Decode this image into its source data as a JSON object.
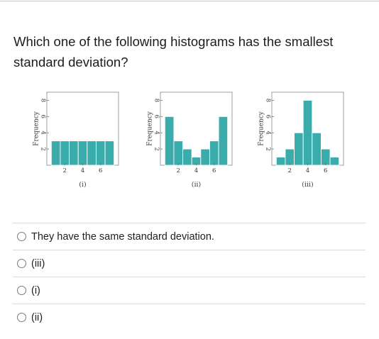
{
  "question": {
    "text": "Which one of the following histograms has the smallest standard deviation?"
  },
  "chart_data": [
    {
      "type": "bar",
      "caption": "(i)",
      "ylabel": "Frequency",
      "xticks": [
        "2",
        "4",
        "6"
      ],
      "yticks": [
        "2",
        "4",
        "6",
        "8"
      ],
      "categories": [
        "1",
        "2",
        "3",
        "4",
        "5",
        "6",
        "7"
      ],
      "values": [
        3,
        3,
        3,
        3,
        3,
        3,
        3
      ],
      "xlim": [
        0,
        8
      ],
      "ylim": [
        0,
        9
      ],
      "bar_color": "#3aacac",
      "grid": false
    },
    {
      "type": "bar",
      "caption": "(ii)",
      "ylabel": "Frequency",
      "xticks": [
        "2",
        "4",
        "6"
      ],
      "yticks": [
        "2",
        "4",
        "6",
        "8"
      ],
      "categories": [
        "1",
        "2",
        "3",
        "4",
        "5",
        "6",
        "7"
      ],
      "values": [
        6,
        3,
        2,
        1,
        2,
        3,
        6
      ],
      "xlim": [
        0,
        8
      ],
      "ylim": [
        0,
        9
      ],
      "bar_color": "#3aacac",
      "grid": false
    },
    {
      "type": "bar",
      "caption": "(iii)",
      "ylabel": "Frequency",
      "xticks": [
        "2",
        "4",
        "6"
      ],
      "yticks": [
        "2",
        "4",
        "6",
        "8"
      ],
      "categories": [
        "1",
        "2",
        "3",
        "4",
        "5",
        "6",
        "7"
      ],
      "values": [
        1,
        2,
        4,
        8,
        4,
        2,
        1
      ],
      "xlim": [
        0,
        8
      ],
      "ylim": [
        0,
        9
      ],
      "bar_color": "#3aacac",
      "grid": false
    }
  ],
  "choices": [
    {
      "label": "They have the same standard deviation."
    },
    {
      "label": "(iii)"
    },
    {
      "label": "(i)"
    },
    {
      "label": "(ii)"
    }
  ]
}
